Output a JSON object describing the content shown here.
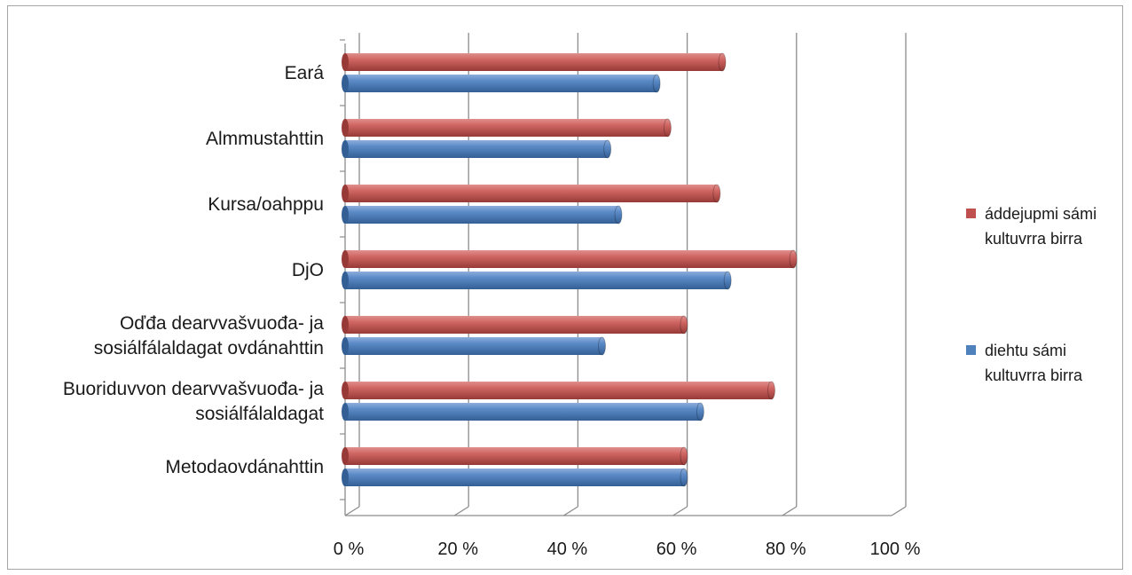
{
  "chart_data": {
    "type": "bar",
    "orientation": "horizontal",
    "style": "3d-cylinder",
    "title": "",
    "xlabel": "",
    "ylabel": "",
    "xlim": [
      0,
      100
    ],
    "x_ticks": [
      "0 %",
      "20 %",
      "40 %",
      "60 %",
      "80 %",
      "100 %"
    ],
    "grid": true,
    "legend_position": "right",
    "categories": [
      [
        "Eará"
      ],
      [
        "Almmustahttin"
      ],
      [
        "Kursa/oahppu"
      ],
      [
        "DjO"
      ],
      [
        "Oďđa dearvvašvuođa- ja",
        "sosiálfálaldagat ovdánahttin"
      ],
      [
        "Buoriduvvon dearvvašvuođa- ja",
        "sosiálfálaldagat"
      ],
      [
        "Metodaovdánahttin"
      ]
    ],
    "series": [
      {
        "name": "áddejupmi sámi kultuvrra birra",
        "legend_lines": [
          "áddejupmi sámi",
          "kultuvrra birra"
        ],
        "color": "#c0504d",
        "values": [
          69,
          59,
          68,
          82,
          62,
          78,
          62
        ]
      },
      {
        "name": "diehtu sámi kultuvrra birra",
        "legend_lines": [
          "diehtu sámi",
          "kultuvrra birra"
        ],
        "color": "#4f81bd",
        "values": [
          57,
          48,
          50,
          70,
          47,
          65,
          62
        ]
      }
    ]
  }
}
